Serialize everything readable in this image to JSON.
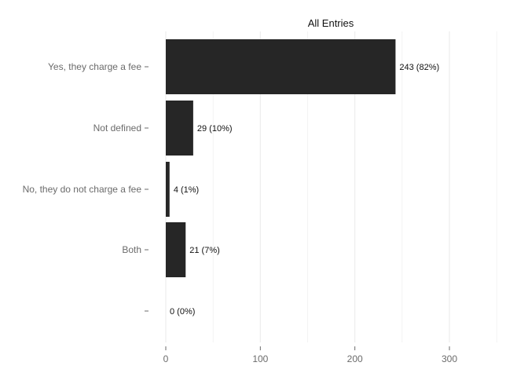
{
  "chart_data": {
    "type": "bar",
    "orientation": "horizontal",
    "title": "All Entries",
    "xlabel": "",
    "ylabel": "",
    "categories": [
      "Yes, they charge a fee",
      "Not defined",
      "No, they do not charge a fee",
      "Both",
      ""
    ],
    "values": [
      243,
      29,
      4,
      21,
      0
    ],
    "data_labels": [
      "243 (82%)",
      "29 (10%)",
      "4 (1%)",
      "21 (7%)",
      "0 (0%)"
    ],
    "xlim": [
      0,
      350
    ],
    "x_ticks": [
      0,
      100,
      200,
      300
    ],
    "x_tick_labels": [
      "0",
      "100",
      "200",
      "300"
    ],
    "grid": true,
    "bar_color": "#262626",
    "grid_color": "#ebebeb",
    "background": "#ffffff"
  }
}
